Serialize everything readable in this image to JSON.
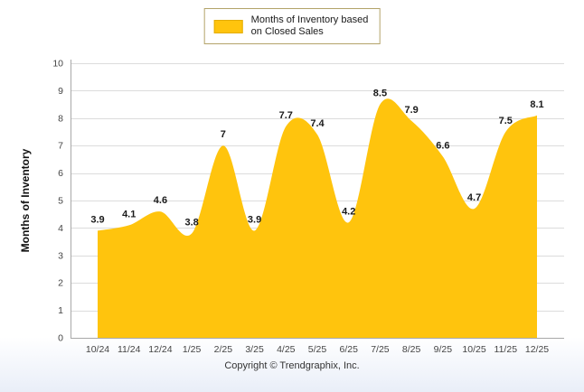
{
  "chart_data": {
    "type": "area",
    "title": "",
    "categories": [
      "10/24",
      "11/24",
      "12/24",
      "1/25",
      "2/25",
      "3/25",
      "4/25",
      "5/25",
      "6/25",
      "7/25",
      "8/25",
      "9/25",
      "10/25",
      "11/25",
      "12/25"
    ],
    "values": [
      3.9,
      4.1,
      4.6,
      3.8,
      7,
      3.9,
      7.7,
      7.4,
      4.2,
      8.5,
      7.9,
      6.6,
      4.7,
      7.5,
      8.1
    ],
    "point_labels": [
      "3.9",
      "4.1",
      "4.6",
      "3.8",
      "7",
      "3.9",
      "7.7",
      "7.4",
      "4.2",
      "8.5",
      "7.9",
      "6.6",
      "4.7",
      "7.5",
      "8.1"
    ],
    "xlabel": "",
    "ylabel": "Months of Inventory",
    "ylim": [
      0,
      10
    ],
    "ytick_step": 1,
    "grid": "horizontal",
    "series_color": "#FFC40D",
    "legend": {
      "position": "top-center",
      "lines": [
        "Months of Inventory based",
        "on Closed Sales"
      ]
    }
  },
  "footer": {
    "copyright": "Copyright © Trendgraphix, Inc."
  }
}
